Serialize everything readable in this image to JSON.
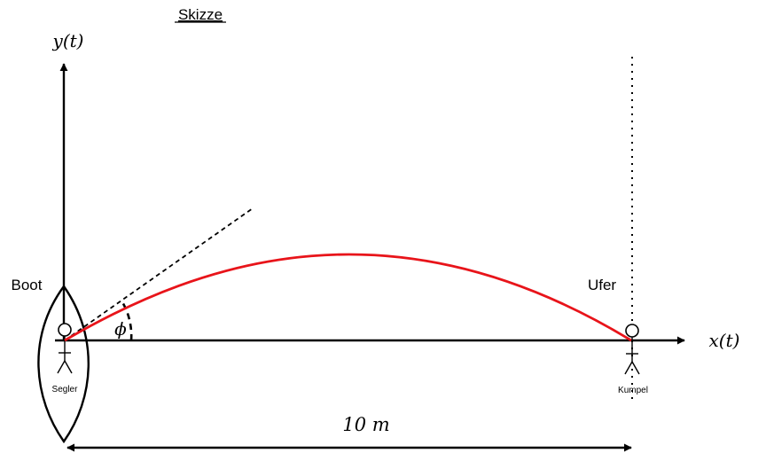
{
  "title": "Skizze",
  "axes": {
    "y_label": "y(t)",
    "x_label": "x(t)"
  },
  "labels": {
    "boat": "Boot",
    "shore": "Ufer",
    "sailor": "Segler",
    "buddy": "Kumpel",
    "angle": "ϕ",
    "distance": "10 m"
  },
  "colors": {
    "trajectory": "#e8141a",
    "lines": "#000000"
  }
}
